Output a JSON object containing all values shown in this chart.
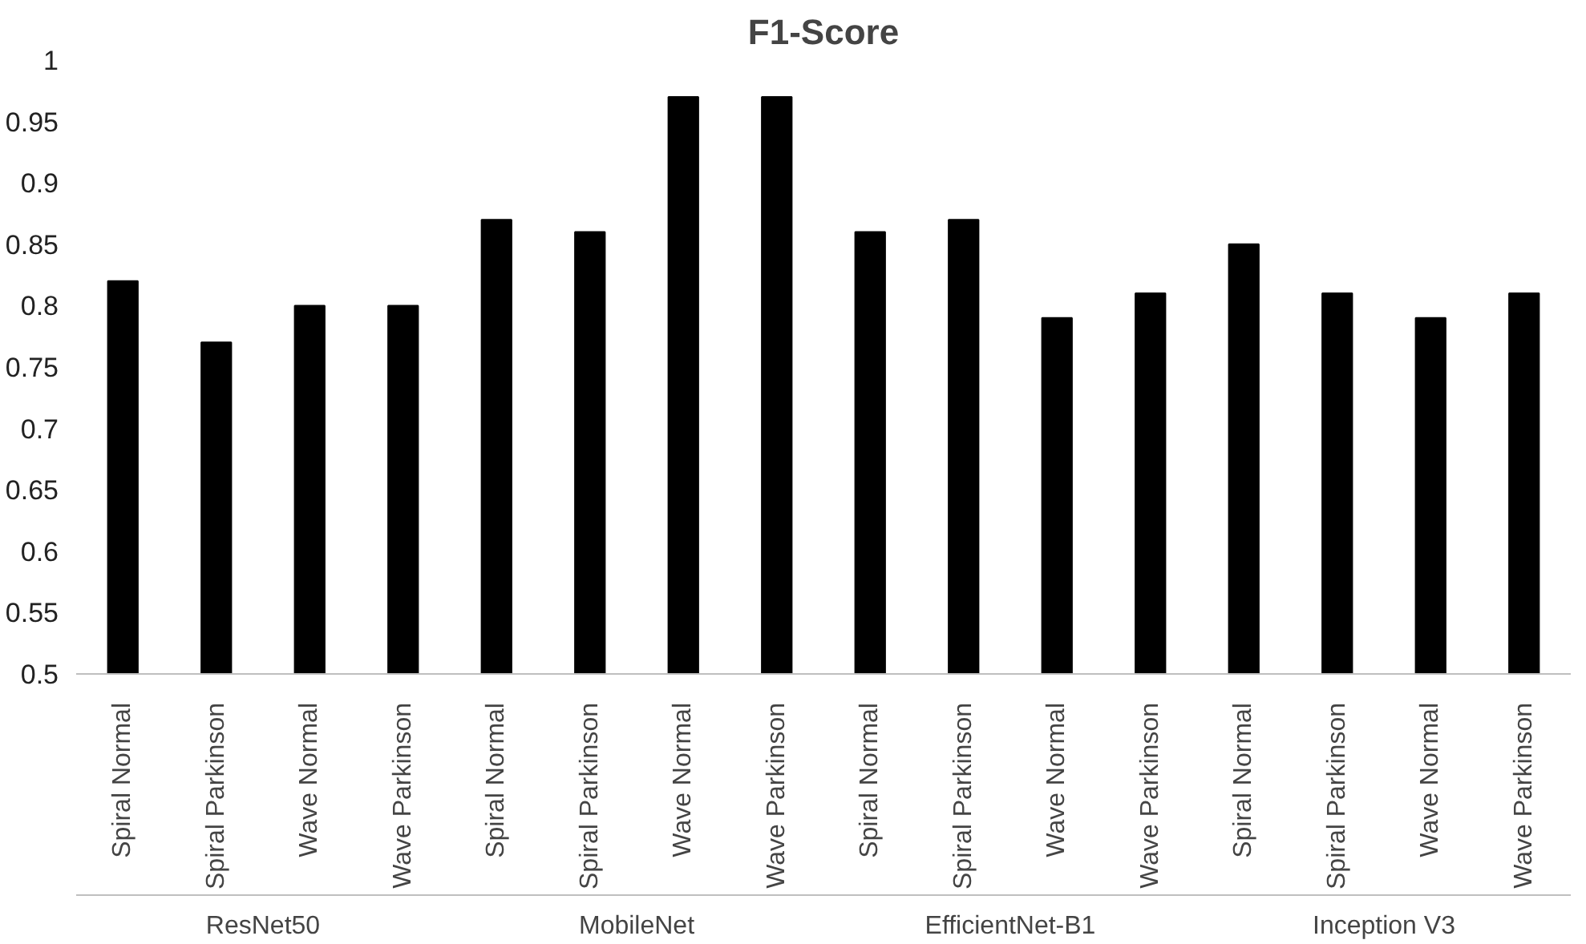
{
  "chart_data": {
    "type": "bar",
    "title": "F1-Score",
    "categories": [
      "Spiral Normal",
      "Spiral Parkinson",
      "Wave Normal",
      "Wave Parkinson",
      "Spiral Normal",
      "Spiral Parkinson",
      "Wave Normal",
      "Wave Parkinson",
      "Spiral Normal",
      "Spiral Parkinson",
      "Wave Normal",
      "Wave Parkinson",
      "Spiral Normal",
      "Spiral Parkinson",
      "Wave Normal",
      "Wave Parkinson"
    ],
    "values": [
      0.82,
      0.77,
      0.8,
      0.8,
      0.87,
      0.86,
      0.97,
      0.97,
      0.86,
      0.87,
      0.79,
      0.81,
      0.85,
      0.81,
      0.79,
      0.81
    ],
    "color": "#000000",
    "annotations": [
      "ResNet50",
      "MobileNet",
      "EfficientNet-B1",
      "Inception V3"
    ],
    "ylim": [
      0.5,
      1
    ],
    "yticks": [
      0.5,
      0.55,
      0.6,
      0.65,
      0.7,
      0.75,
      0.8,
      0.85,
      0.9,
      0.95,
      1
    ],
    "grid": false
  }
}
